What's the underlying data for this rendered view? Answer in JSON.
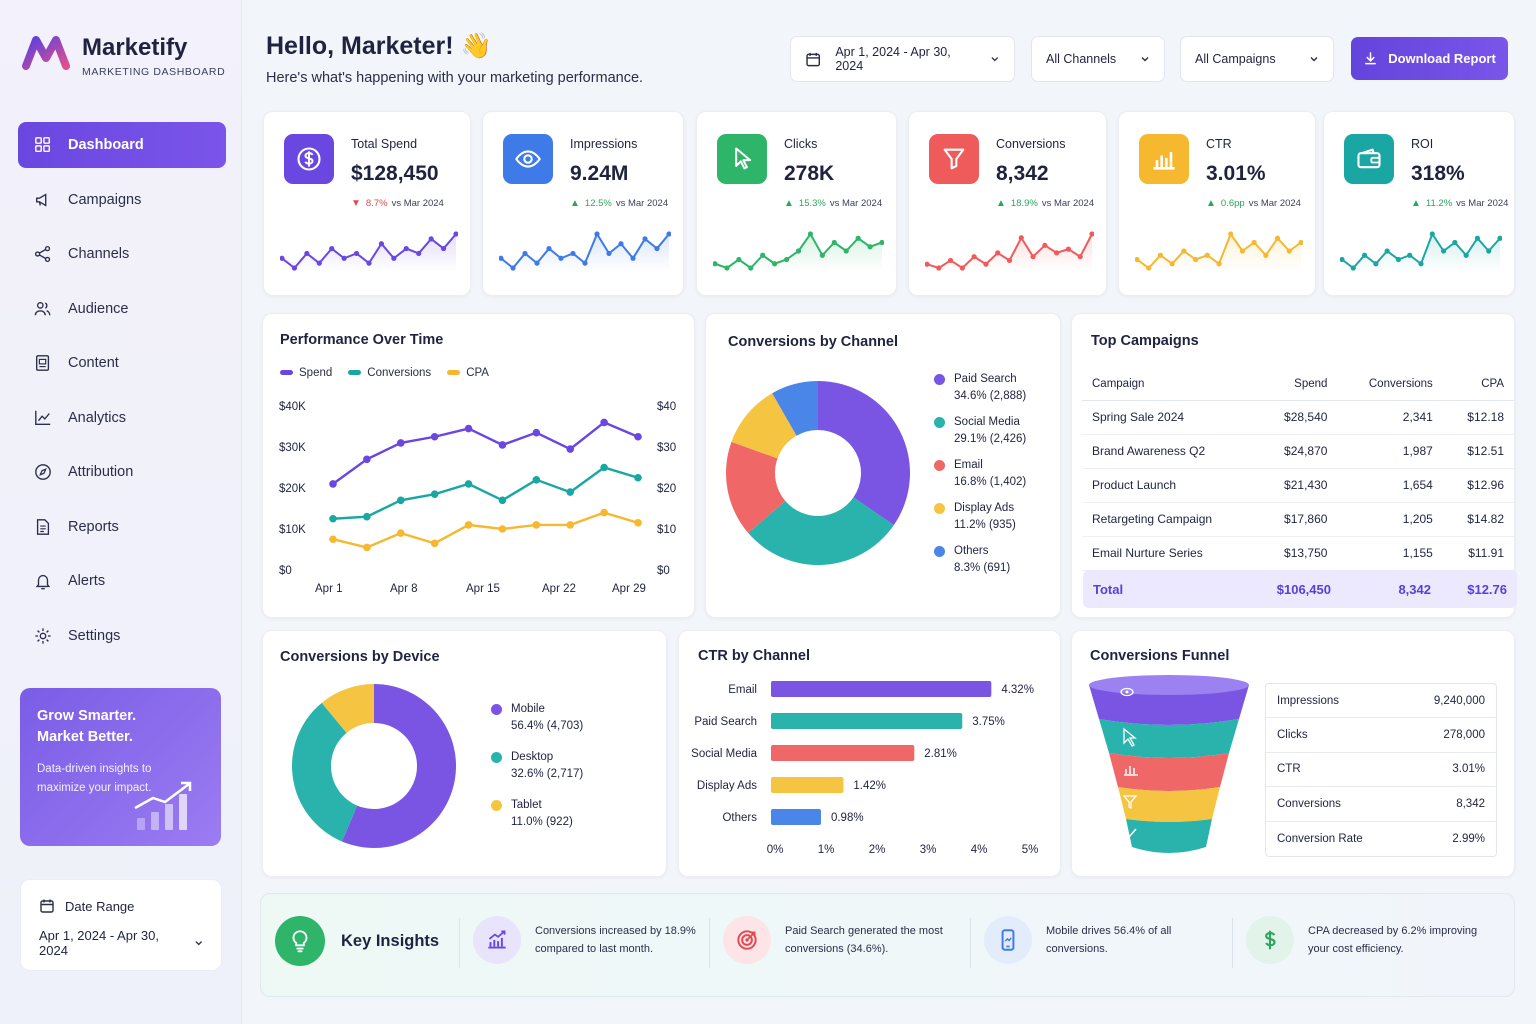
{
  "brand": {
    "name": "Marketify",
    "subtitle": "MARKETING DASHBOARD"
  },
  "nav": [
    {
      "label": "Dashboard",
      "icon": "grid-icon",
      "active": true
    },
    {
      "label": "Campaigns",
      "icon": "megaphone-icon"
    },
    {
      "label": "Channels",
      "icon": "share-icon"
    },
    {
      "label": "Audience",
      "icon": "users-icon"
    },
    {
      "label": "Content",
      "icon": "document-image-icon"
    },
    {
      "label": "Analytics",
      "icon": "line-chart-icon"
    },
    {
      "label": "Attribution",
      "icon": "compass-icon"
    },
    {
      "label": "Reports",
      "icon": "report-icon"
    },
    {
      "label": "Alerts",
      "icon": "bell-icon"
    },
    {
      "label": "Settings",
      "icon": "gear-icon"
    }
  ],
  "promo": {
    "title_line1": "Grow Smarter.",
    "title_line2": "Market Better.",
    "text": "Data-driven insights to maximize your impact."
  },
  "sidebar_date": {
    "label": "Date Range",
    "value": "Apr 1, 2024 - Apr 30, 2024"
  },
  "header": {
    "greeting": "Hello, Marketer! 👋",
    "subtitle": "Here's what's happening with your marketing performance.",
    "date_range": "Apr 1, 2024 - Apr 30, 2024",
    "channels": "All Channels",
    "campaigns": "All Campaigns",
    "download": "Download Report"
  },
  "kpis": [
    {
      "label": "Total Spend",
      "value": "$128,450",
      "delta": "8.7%",
      "dir": "down",
      "compare": "vs Mar 2024",
      "color": "#6a47e0",
      "icon": "dollar-icon",
      "spark": [
        5,
        3,
        6,
        4,
        7,
        5,
        6,
        4,
        8,
        5,
        7,
        6,
        9,
        7,
        10
      ]
    },
    {
      "label": "Impressions",
      "value": "9.24M",
      "delta": "12.5%",
      "dir": "up",
      "compare": "vs Mar 2024",
      "color": "#3f7be8",
      "icon": "eye-icon",
      "spark": [
        5,
        3,
        6,
        4,
        7,
        5,
        6,
        4,
        10,
        6,
        8,
        5,
        9,
        7,
        10
      ]
    },
    {
      "label": "Clicks",
      "value": "278K",
      "delta": "15.3%",
      "dir": "up",
      "compare": "vs Mar 2024",
      "color": "#2fb56a",
      "icon": "cursor-icon",
      "spark": [
        4,
        3,
        5,
        3,
        6,
        4,
        5,
        7,
        11,
        6,
        9,
        7,
        10,
        8,
        9
      ]
    },
    {
      "label": "Conversions",
      "value": "8,342",
      "delta": "18.9%",
      "dir": "up",
      "compare": "vs Mar 2024",
      "color": "#ef5b5b",
      "icon": "funnel-icon",
      "spark": [
        4,
        3,
        5,
        3,
        6,
        4,
        7,
        5,
        11,
        6,
        9,
        7,
        8,
        6,
        12
      ]
    },
    {
      "label": "CTR",
      "value": "3.01%",
      "delta": "0.6pp",
      "dir": "up",
      "compare": "vs Mar 2024",
      "color": "#f5b82e",
      "icon": "bar-chart-icon",
      "spark": [
        5,
        3,
        6,
        4,
        7,
        5,
        6,
        4,
        11,
        7,
        9,
        6,
        10,
        7,
        9
      ]
    },
    {
      "label": "ROI",
      "value": "318%",
      "delta": "11.2%",
      "dir": "up",
      "compare": "vs Mar 2024",
      "color": "#1aa7a3",
      "icon": "wallet-icon",
      "spark": [
        5,
        3,
        6,
        4,
        7,
        5,
        6,
        4,
        11,
        7,
        9,
        6,
        10,
        7,
        10
      ]
    }
  ],
  "performance": {
    "title": "Performance Over Time",
    "legend": [
      {
        "name": "Spend",
        "color": "#6a47e0"
      },
      {
        "name": "Conversions",
        "color": "#1aa7a3"
      },
      {
        "name": "CPA",
        "color": "#f5b82e"
      }
    ],
    "y_left": [
      "$40K",
      "$30K",
      "$20K",
      "$10K",
      "$0"
    ],
    "y_right": [
      "$40",
      "$30",
      "$20",
      "$10",
      "$0"
    ],
    "x_ticks": [
      "Apr 1",
      "Apr 8",
      "Apr 15",
      "Apr 22",
      "Apr 29"
    ]
  },
  "channel_donut": {
    "title": "Conversions by Channel",
    "slices": [
      {
        "name": "Paid Search",
        "label": "34.6% (2,888)",
        "value": 34.6,
        "color": "#7a55e4"
      },
      {
        "name": "Social Media",
        "label": "29.1% (2,426)",
        "value": 29.1,
        "color": "#2ab3ad"
      },
      {
        "name": "Email",
        "label": "16.8% (1,402)",
        "value": 16.8,
        "color": "#f06767"
      },
      {
        "name": "Display Ads",
        "label": "11.2% (935)",
        "value": 11.2,
        "color": "#f5c542"
      },
      {
        "name": "Others",
        "label": "8.3% (691)",
        "value": 8.3,
        "color": "#4a86e8"
      }
    ]
  },
  "top_campaigns": {
    "title": "Top Campaigns",
    "headers": [
      "Campaign",
      "Spend",
      "Conversions",
      "CPA"
    ],
    "rows": [
      [
        "Spring Sale 2024",
        "$28,540",
        "2,341",
        "$12.18"
      ],
      [
        "Brand Awareness Q2",
        "$24,870",
        "1,987",
        "$12.51"
      ],
      [
        "Product Launch",
        "$21,430",
        "1,654",
        "$12.96"
      ],
      [
        "Retargeting Campaign",
        "$17,860",
        "1,205",
        "$14.82"
      ],
      [
        "Email Nurture Series",
        "$13,750",
        "1,155",
        "$11.91"
      ]
    ],
    "total": [
      "Total",
      "$106,450",
      "8,342",
      "$12.76"
    ]
  },
  "device_donut": {
    "title": "Conversions by Device",
    "slices": [
      {
        "name": "Mobile",
        "label": "56.4% (4,703)",
        "value": 56.4,
        "color": "#7a55e4"
      },
      {
        "name": "Desktop",
        "label": "32.6% (2,717)",
        "value": 32.6,
        "color": "#2ab3ad"
      },
      {
        "name": "Tablet",
        "label": "11.0% (922)",
        "value": 11.0,
        "color": "#f5c542"
      }
    ]
  },
  "ctr_channel": {
    "title": "CTR by Channel",
    "bars": [
      {
        "name": "Email",
        "value": 4.32,
        "label": "4.32%",
        "color": "#7a55e4"
      },
      {
        "name": "Paid Search",
        "value": 3.75,
        "label": "3.75%",
        "color": "#2ab3ad"
      },
      {
        "name": "Social Media",
        "value": 2.81,
        "label": "2.81%",
        "color": "#f06767"
      },
      {
        "name": "Display Ads",
        "value": 1.42,
        "label": "1.42%",
        "color": "#f5c542"
      },
      {
        "name": "Others",
        "value": 0.98,
        "label": "0.98%",
        "color": "#4a86e8"
      }
    ],
    "x_ticks": [
      "0%",
      "1%",
      "2%",
      "3%",
      "4%",
      "5%"
    ],
    "xmax": 5
  },
  "funnel": {
    "title": "Conversions Funnel",
    "rows": [
      {
        "label": "Impressions",
        "value": "9,240,000"
      },
      {
        "label": "Clicks",
        "value": "278,000"
      },
      {
        "label": "CTR",
        "value": "3.01%"
      },
      {
        "label": "Conversions",
        "value": "8,342"
      },
      {
        "label": "Conversion Rate",
        "value": "2.99%"
      }
    ]
  },
  "insights": {
    "title": "Key Insights",
    "items": [
      {
        "text": "Conversions increased by 18.9% compared to last month.",
        "icon": "trend-chart-icon"
      },
      {
        "text": "Paid Search generated the most conversions (34.6%).",
        "icon": "target-icon"
      },
      {
        "text": "Mobile drives 56.4% of all conversions.",
        "icon": "mobile-icon"
      },
      {
        "text": "CPA decreased by 6.2% improving your cost efficiency.",
        "icon": "dollar-icon"
      }
    ]
  },
  "chart_data": [
    {
      "type": "line",
      "title": "Performance Over Time",
      "x": [
        "Apr 1",
        "Apr 4",
        "Apr 8",
        "Apr 11",
        "Apr 15",
        "Apr 18",
        "Apr 22",
        "Apr 25",
        "Apr 29",
        "Apr 30"
      ],
      "series": [
        {
          "name": "Spend",
          "values": [
            21000,
            27000,
            31000,
            32500,
            34500,
            30500,
            33500,
            29500,
            36000,
            32500
          ]
        },
        {
          "name": "Conversions",
          "values": [
            12500,
            13000,
            17000,
            18500,
            21000,
            17000,
            22000,
            19000,
            25000,
            22500
          ]
        },
        {
          "name": "CPA",
          "values": [
            7.5,
            5.5,
            9,
            6.5,
            11,
            10,
            11,
            11,
            14,
            11.5
          ]
        }
      ],
      "ylim": [
        0,
        40000
      ],
      "y2lim": [
        0,
        40
      ]
    },
    {
      "type": "pie",
      "title": "Conversions by Channel",
      "categories": [
        "Paid Search",
        "Social Media",
        "Email",
        "Display Ads",
        "Others"
      ],
      "values": [
        34.6,
        29.1,
        16.8,
        11.2,
        8.3
      ]
    },
    {
      "type": "pie",
      "title": "Conversions by Device",
      "categories": [
        "Mobile",
        "Desktop",
        "Tablet"
      ],
      "values": [
        56.4,
        32.6,
        11.0
      ]
    },
    {
      "type": "bar",
      "title": "CTR by Channel",
      "categories": [
        "Email",
        "Paid Search",
        "Social Media",
        "Display Ads",
        "Others"
      ],
      "values": [
        4.32,
        3.75,
        2.81,
        1.42,
        0.98
      ],
      "xlim": [
        0,
        5
      ]
    }
  ]
}
